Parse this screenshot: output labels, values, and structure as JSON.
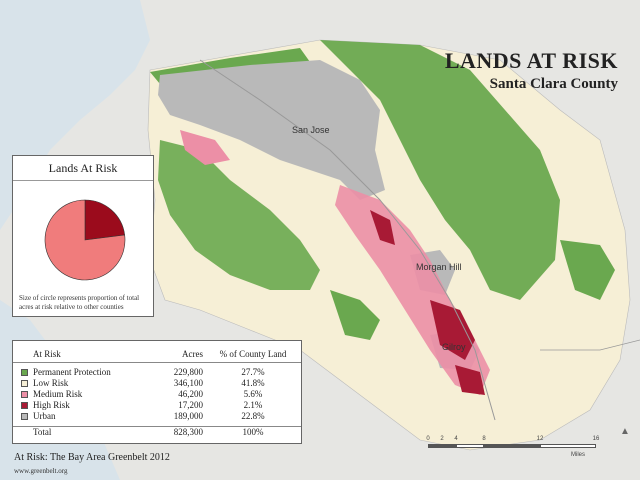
{
  "title": "LANDS AT RISK",
  "subtitle": "Santa Clara County",
  "places": [
    {
      "id": "san-jose",
      "label": "San Jose"
    },
    {
      "id": "morgan-hill",
      "label": "Morgan Hill"
    },
    {
      "id": "gilroy",
      "label": "Gilroy"
    }
  ],
  "inset": {
    "title": "Lands At Risk",
    "note": "Size of circle represents proportion of total acres at risk relative to other counties",
    "pie": [
      {
        "category": "Low + Permanent",
        "fraction": 0.77,
        "color": "#f07c7c"
      },
      {
        "category": "High + Medium Risk",
        "fraction": 0.23,
        "color": "#9b0b1c"
      }
    ]
  },
  "table": {
    "headers": {
      "category": "At Risk",
      "acres": "Acres",
      "percent": "% of County Land"
    },
    "rows": [
      {
        "category": "Permanent Protection",
        "acres": "229,800",
        "percent": "27.7%",
        "color": "#6aa84f"
      },
      {
        "category": "Low Risk",
        "acres": "346,100",
        "percent": "41.8%",
        "color": "#f6efd6"
      },
      {
        "category": "Medium Risk",
        "acres": "46,200",
        "percent": "5.6%",
        "color": "#ec8fa6"
      },
      {
        "category": "High Risk",
        "acres": "17,200",
        "percent": "2.1%",
        "color": "#a81a35"
      },
      {
        "category": "Urban",
        "acres": "189,000",
        "percent": "22.8%",
        "color": "#b9b9b9"
      }
    ],
    "total": {
      "category": "Total",
      "acres": "828,300",
      "percent": "100%"
    }
  },
  "credit": "At Risk: The Bay Area Greenbelt 2012",
  "url": "www.greenbelt.org",
  "scale": {
    "ticks": [
      "0",
      "2",
      "4",
      "8",
      "12",
      "16"
    ],
    "unit": "Miles"
  },
  "colors": {
    "permanent": "#6aa84f",
    "low": "#f6efd6",
    "medium": "#ec8fa6",
    "high": "#a81a35",
    "urban": "#b9b9b9",
    "water": "#d7e3ea",
    "land": "#eaeae7"
  }
}
